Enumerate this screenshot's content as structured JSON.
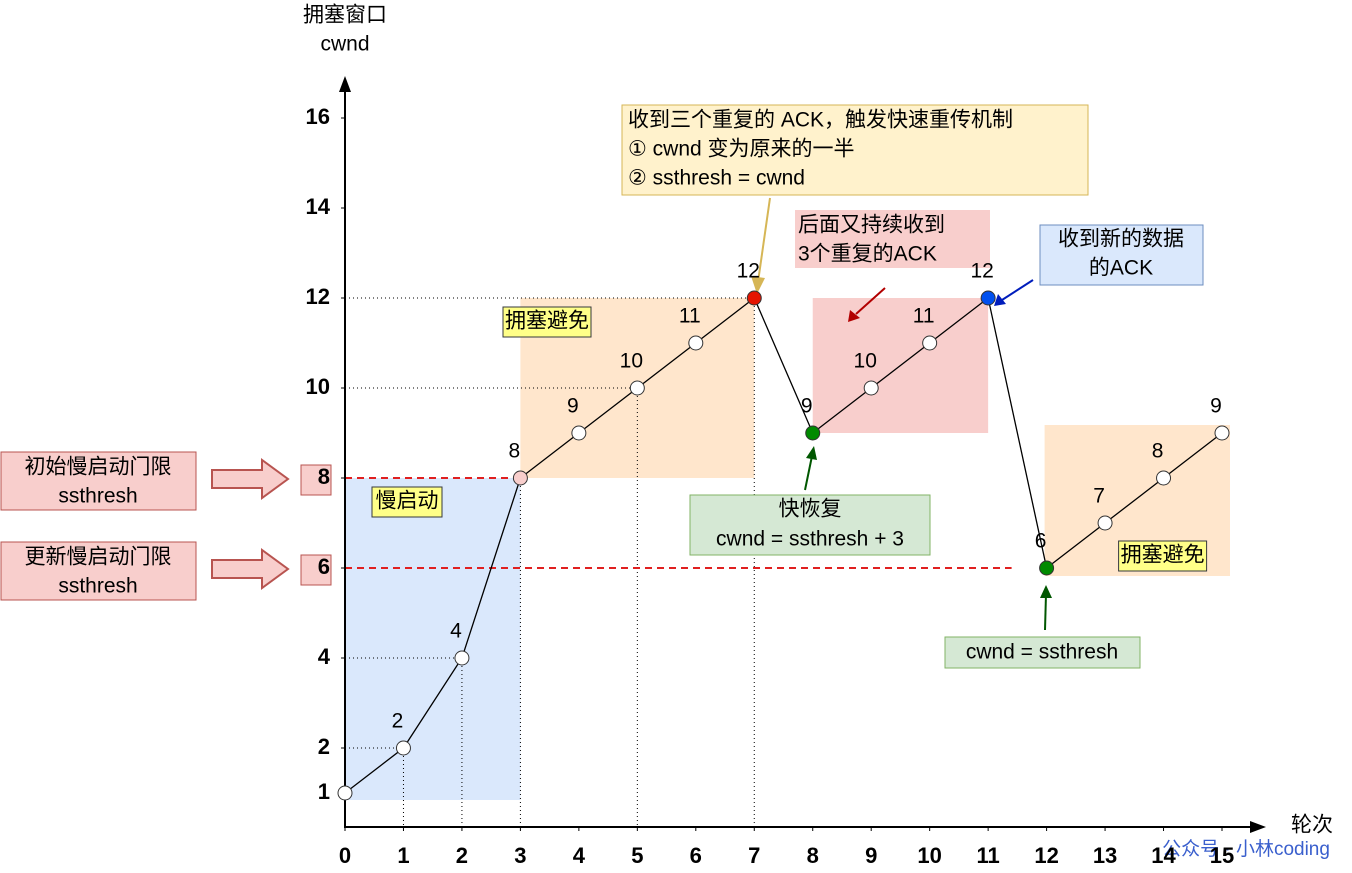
{
  "chart_data": {
    "type": "line",
    "y_label": [
      "拥塞窗口",
      "cwnd"
    ],
    "x_label": "轮次",
    "x": [
      0,
      1,
      2,
      3,
      4,
      5,
      6,
      7,
      8,
      9,
      10,
      11,
      12,
      13,
      14,
      15
    ],
    "series": [
      {
        "name": "cwnd",
        "color": "#000000",
        "values": [
          1,
          2,
          4,
          8,
          9,
          10,
          11,
          12,
          9,
          10,
          11,
          12,
          6,
          7,
          8,
          9
        ],
        "point_colors": [
          "#ffffff",
          "#ffffff",
          "#ffffff",
          "#f8cecc",
          "#ffffff",
          "#ffffff",
          "#ffffff",
          "#e51400",
          "#008a00",
          "#ffffff",
          "#ffffff",
          "#0050ef",
          "#008a00",
          "#ffffff",
          "#ffffff",
          "#ffffff"
        ]
      }
    ],
    "xlim": [
      0,
      15
    ],
    "ylim": [
      0,
      16.8
    ],
    "xticks": [
      0,
      1,
      2,
      3,
      4,
      5,
      6,
      7,
      8,
      9,
      10,
      11,
      12,
      13,
      14,
      15
    ],
    "yticks": [
      1,
      2,
      4,
      6,
      8,
      10,
      12,
      14,
      16
    ],
    "phase_labels": [
      "慢启动",
      "拥塞避免",
      "拥塞避免"
    ],
    "annotations": {
      "fast_retransmit": [
        "收到三个重复的 ACK，触发快速重传机制",
        "① cwnd 变为原来的一半",
        "② ssthresh = cwnd"
      ],
      "repeat_ack": [
        "后面又持续收到",
        "3个重复的ACK"
      ],
      "new_ack": [
        "收到新的数据",
        "的ACK"
      ],
      "fast_recovery": [
        "快恢复",
        "cwnd = ssthresh + 3"
      ],
      "reset": "cwnd = ssthresh",
      "initial_threshold": [
        "初始慢启动门限",
        "ssthresh"
      ],
      "updated_threshold": [
        "更新慢启动门限",
        "ssthresh"
      ]
    },
    "watermark": "公众号 · 小林coding"
  }
}
